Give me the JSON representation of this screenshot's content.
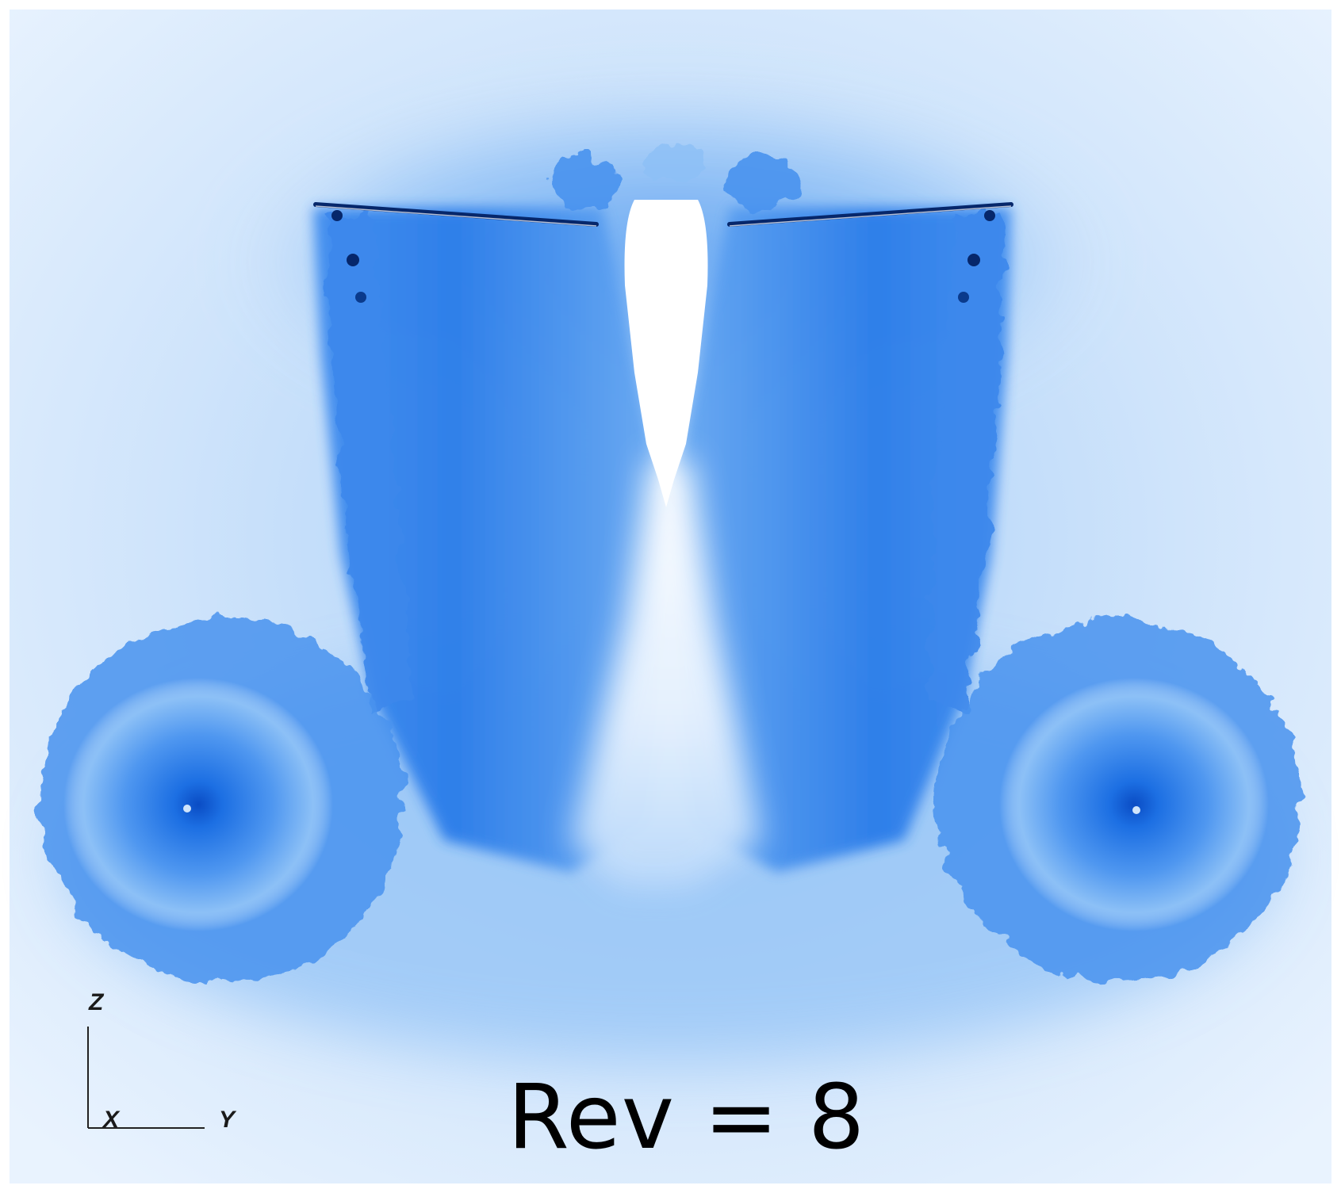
{
  "label": {
    "text": "Rev = 8"
  },
  "axes": {
    "z": "Z",
    "x": "X",
    "y": "Y"
  },
  "colors": {
    "background": "#ffffff",
    "field_light": "#d4e8fc",
    "field_mid": "#7bb6f5",
    "field_deep": "#1a6fe0",
    "field_dark": "#0a3f9e",
    "text": "#000000"
  }
}
